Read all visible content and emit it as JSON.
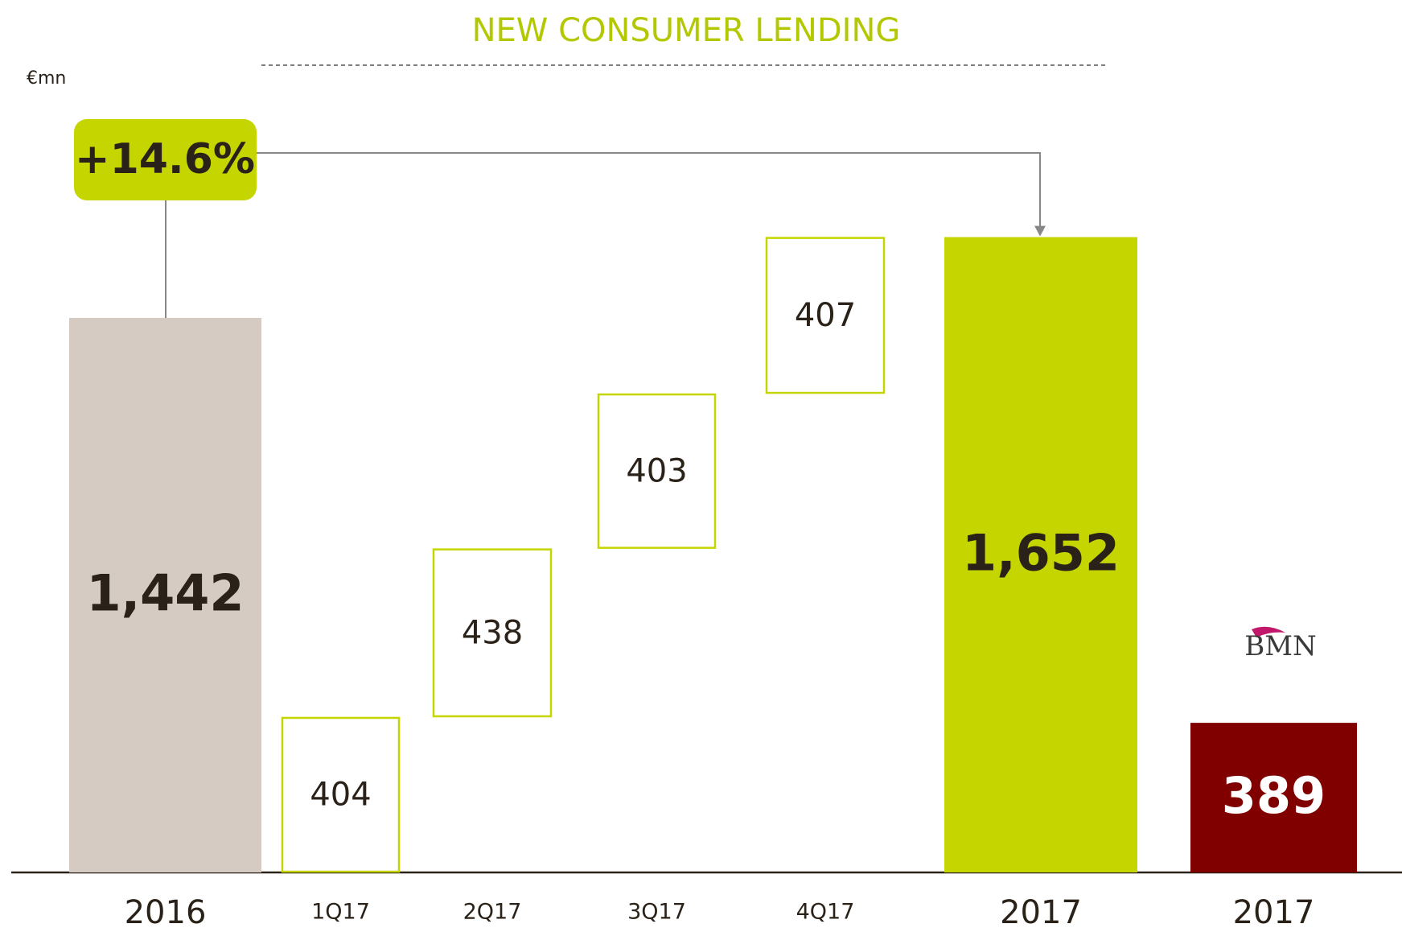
{
  "chart_data": {
    "type": "waterfall",
    "title": "NEW CONSUMER LENDING",
    "unit_label": "€mn",
    "annotation": "+14.6%",
    "logo_label": "BMN",
    "categories": [
      "2016",
      "1Q17",
      "2Q17",
      "3Q17",
      "4Q17",
      "2017",
      "2017"
    ],
    "values": [
      1442,
      404,
      438,
      403,
      407,
      1652,
      389
    ],
    "value_labels": [
      "1,442",
      "404",
      "438",
      "403",
      "407",
      "1,652",
      "389"
    ],
    "measure": [
      "total",
      "relative",
      "relative",
      "relative",
      "relative",
      "total",
      "total"
    ],
    "colors": [
      "#d5cbc3",
      "#c5d500",
      "#c5d500",
      "#c5d500",
      "#c5d500",
      "#c5d500",
      "#800000"
    ],
    "ylim": [
      0,
      1850
    ]
  }
}
